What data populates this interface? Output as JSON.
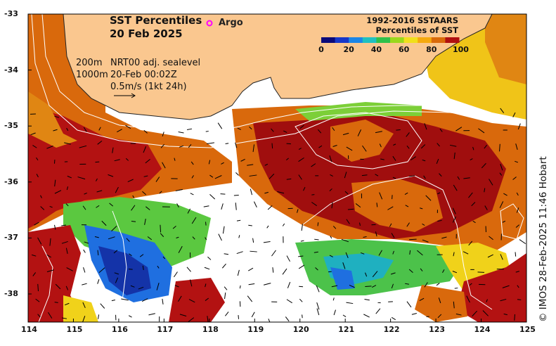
{
  "title": {
    "line1": "SST Percentiles",
    "line2": "20 Feb 2025"
  },
  "legend": {
    "argo_label": "Argo",
    "argo_color": "#ff00ff"
  },
  "colorbar": {
    "title1": "1992-2016 SSTAARS",
    "title2": "Percentiles of SST",
    "ticks": [
      "0",
      "20",
      "40",
      "60",
      "80",
      "100"
    ],
    "colors": [
      "#0a0a7a",
      "#1737c8",
      "#1c86e6",
      "#20c0c0",
      "#2fc04a",
      "#9ad81d",
      "#f0e01c",
      "#f5a90d",
      "#d96a0a",
      "#b01010"
    ]
  },
  "info": {
    "depth1": "200m",
    "depth2": "1000m",
    "sealevel": "NRT00 adj. sealevel",
    "datetime": "20-Feb 00:02Z",
    "scale_label": "0.5m/s (1kt 24h)"
  },
  "credit": "© IMOS 28-Feb-2025 11:46 Hobart",
  "axes": {
    "x_ticks": [
      "114",
      "115",
      "116",
      "117",
      "118",
      "119",
      "120",
      "121",
      "122",
      "123",
      "124",
      "125"
    ],
    "y_ticks": [
      "-33",
      "-34",
      "-35",
      "-36",
      "-37",
      "-38"
    ]
  },
  "land_color": "#fac78f"
}
